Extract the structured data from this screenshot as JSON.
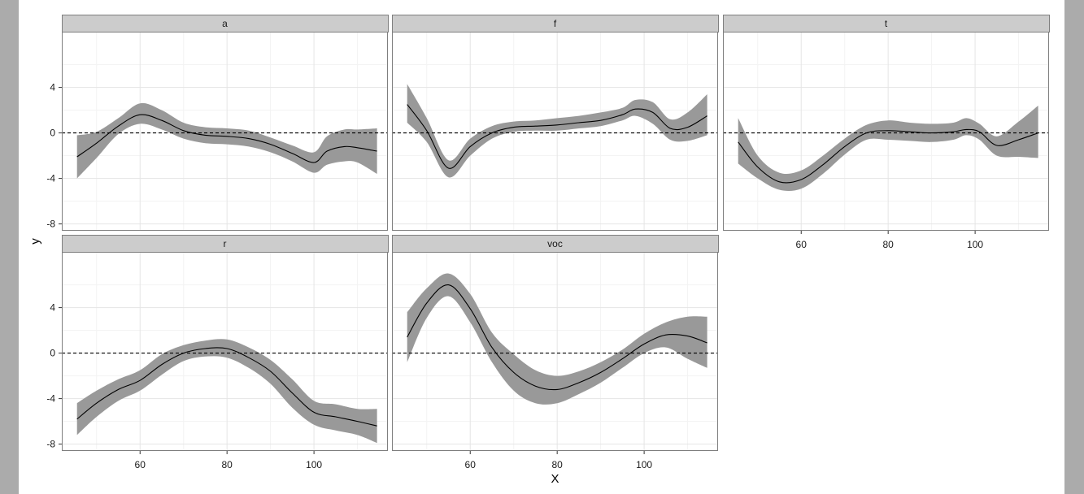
{
  "chart_data": {
    "type": "line",
    "subtype": "faceted smooth lines with confidence bands",
    "xlabel": "X",
    "ylabel": "y",
    "xlim": [
      42,
      117
    ],
    "ylim": [
      -8.6,
      8.9
    ],
    "x_ticks": [
      60,
      80,
      100
    ],
    "y_ticks": [
      -8,
      -4,
      0,
      4
    ],
    "reference_line": {
      "y": 0,
      "style": "dashed"
    },
    "grid": true,
    "colors": {
      "line": "#000000",
      "band": "#999999",
      "strip": "#cccccc",
      "grid": "#e5e5e5"
    },
    "facets": [
      {
        "label": "a",
        "x": [
          45.5,
          50,
          55,
          60,
          65,
          70,
          75,
          80,
          85,
          90,
          95,
          100,
          103,
          107,
          110,
          114.5
        ],
        "y": [
          -2.1,
          -0.9,
          0.6,
          1.6,
          1.1,
          0.2,
          -0.2,
          -0.3,
          -0.5,
          -1.0,
          -1.8,
          -2.6,
          -1.6,
          -1.2,
          -1.3,
          -1.6
        ],
        "lower": [
          -4.0,
          -2.2,
          -0.1,
          0.8,
          0.3,
          -0.5,
          -0.9,
          -1.0,
          -1.2,
          -1.7,
          -2.5,
          -3.5,
          -2.8,
          -2.5,
          -2.6,
          -3.6
        ],
        "upper": [
          -0.2,
          0.1,
          1.3,
          2.6,
          2.0,
          0.9,
          0.5,
          0.4,
          0.2,
          -0.4,
          -1.1,
          -1.7,
          -0.3,
          0.3,
          0.3,
          0.4
        ]
      },
      {
        "label": "f",
        "x": [
          45.5,
          50,
          55,
          60,
          65,
          70,
          75,
          80,
          85,
          90,
          95,
          98,
          102,
          106,
          110,
          114.5
        ],
        "y": [
          2.5,
          0.2,
          -3.1,
          -1.2,
          0.0,
          0.5,
          0.6,
          0.7,
          0.9,
          1.1,
          1.6,
          2.1,
          1.8,
          0.4,
          0.5,
          1.5
        ],
        "lower": [
          0.9,
          -0.8,
          -3.9,
          -2.0,
          -0.5,
          0.1,
          0.2,
          0.2,
          0.4,
          0.6,
          1.1,
          1.5,
          0.8,
          -0.6,
          -0.7,
          -0.2
        ],
        "upper": [
          4.3,
          1.3,
          -2.4,
          -0.5,
          0.6,
          1.0,
          1.1,
          1.3,
          1.5,
          1.8,
          2.2,
          2.9,
          2.7,
          1.2,
          1.8,
          3.4
        ]
      },
      {
        "label": "t",
        "x": [
          45.5,
          50,
          55,
          60,
          65,
          70,
          75,
          80,
          85,
          90,
          95,
          98,
          101,
          105,
          110,
          114.5
        ],
        "y": [
          -0.8,
          -3.0,
          -4.3,
          -4.1,
          -2.8,
          -1.2,
          0.0,
          0.2,
          0.1,
          0.0,
          0.1,
          0.3,
          0.1,
          -1.1,
          -0.6,
          0.0
        ],
        "lower": [
          -2.7,
          -4.0,
          -5.0,
          -4.9,
          -3.6,
          -1.9,
          -0.6,
          -0.6,
          -0.7,
          -0.8,
          -0.6,
          -0.2,
          -0.6,
          -2.0,
          -2.1,
          -2.2
        ],
        "upper": [
          1.3,
          -2.0,
          -3.5,
          -3.3,
          -2.0,
          -0.5,
          0.7,
          1.1,
          0.9,
          0.8,
          0.9,
          1.3,
          0.8,
          -0.3,
          1.0,
          2.4
        ]
      },
      {
        "label": "r",
        "x": [
          45.5,
          50,
          55,
          60,
          65,
          70,
          75,
          80,
          85,
          90,
          95,
          100,
          105,
          110,
          114.5
        ],
        "y": [
          -5.8,
          -4.4,
          -3.2,
          -2.4,
          -1.0,
          0.0,
          0.4,
          0.4,
          -0.4,
          -1.6,
          -3.5,
          -5.2,
          -5.6,
          -6.0,
          -6.4
        ],
        "lower": [
          -7.2,
          -5.6,
          -4.2,
          -3.3,
          -1.9,
          -0.7,
          -0.3,
          -0.4,
          -1.3,
          -2.7,
          -4.8,
          -6.3,
          -6.8,
          -7.2,
          -7.9
        ],
        "upper": [
          -4.4,
          -3.3,
          -2.3,
          -1.5,
          -0.1,
          0.7,
          1.1,
          1.2,
          0.5,
          -0.6,
          -2.3,
          -4.2,
          -4.5,
          -4.9,
          -4.9
        ]
      },
      {
        "label": "voc",
        "x": [
          45.5,
          50,
          55,
          60,
          65,
          70,
          75,
          80,
          85,
          90,
          95,
          100,
          105,
          110,
          114.5
        ],
        "y": [
          1.4,
          4.4,
          6.0,
          3.9,
          0.5,
          -1.7,
          -2.9,
          -3.2,
          -2.6,
          -1.7,
          -0.5,
          0.8,
          1.6,
          1.5,
          0.9
        ],
        "lower": [
          -0.8,
          3.1,
          5.0,
          2.7,
          -0.8,
          -3.3,
          -4.4,
          -4.4,
          -3.6,
          -2.6,
          -1.3,
          0.0,
          0.5,
          -0.5,
          -1.3
        ],
        "upper": [
          3.6,
          5.7,
          7.0,
          5.2,
          1.8,
          -0.1,
          -1.5,
          -2.0,
          -1.6,
          -0.8,
          0.3,
          1.7,
          2.7,
          3.2,
          3.2
        ]
      }
    ]
  }
}
